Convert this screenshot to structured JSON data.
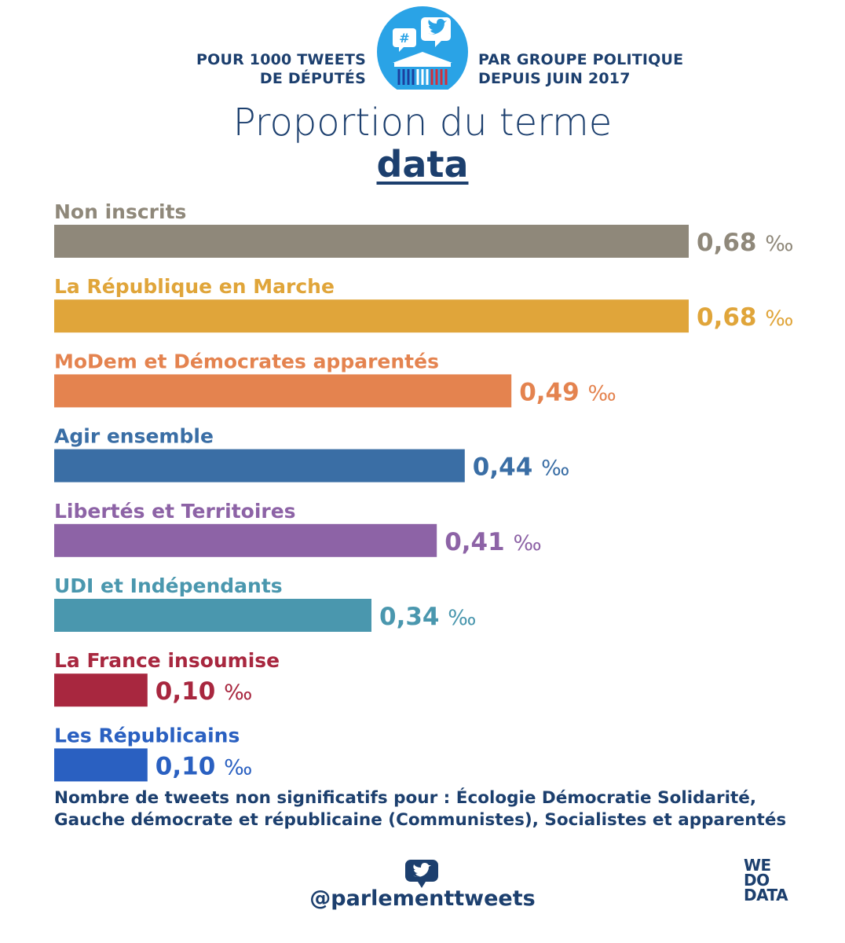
{
  "header": {
    "left_line1": "POUR 1000 TWEETS",
    "left_line2": "DE DÉPUTÉS",
    "right_line1": "PAR GROUPE POLITIQUE",
    "right_line2": "DEPUIS JUIN 2017",
    "logo_icons": [
      "hashtag-bubble-icon",
      "twitter-bird-icon",
      "assembly-building-icon"
    ]
  },
  "colors": {
    "title": "#1c3f6e"
  },
  "chart_data": {
    "type": "bar",
    "orientation": "horizontal",
    "title": "Proportion du terme",
    "subtitle": "data",
    "unit": "‰",
    "categories": [
      "Non inscrits",
      "La République en Marche",
      "MoDem et Démocrates apparentés",
      "Agir ensemble",
      "Libertés et Territoires",
      "UDI et Indépendants",
      "La France insoumise",
      "Les Républicains"
    ],
    "values": [
      0.68,
      0.68,
      0.49,
      0.44,
      0.41,
      0.34,
      0.1,
      0.1
    ],
    "value_labels": [
      "0,68",
      "0,68",
      "0,49",
      "0,44",
      "0,41",
      "0,34",
      "0,10",
      "0,10"
    ],
    "bar_colors": [
      "#8f887a",
      "#e0a53a",
      "#e4834f",
      "#3a6ea5",
      "#8d63a6",
      "#4a97ae",
      "#a8273f",
      "#2a60c1"
    ],
    "xlim": [
      0,
      0.68
    ],
    "grid": false,
    "legend": "none"
  },
  "footnote": {
    "line1": "Nombre de tweets non significatifs pour : Écologie Démocratie Solidarité,",
    "line2": "Gauche démocrate et républicaine (Communistes), Socialistes et apparentés"
  },
  "footer": {
    "handle": "@parlementtweets",
    "icon": "twitter-bubble-icon",
    "brand_line1": "WE",
    "brand_line2": "DO",
    "brand_line3": "DATA"
  }
}
